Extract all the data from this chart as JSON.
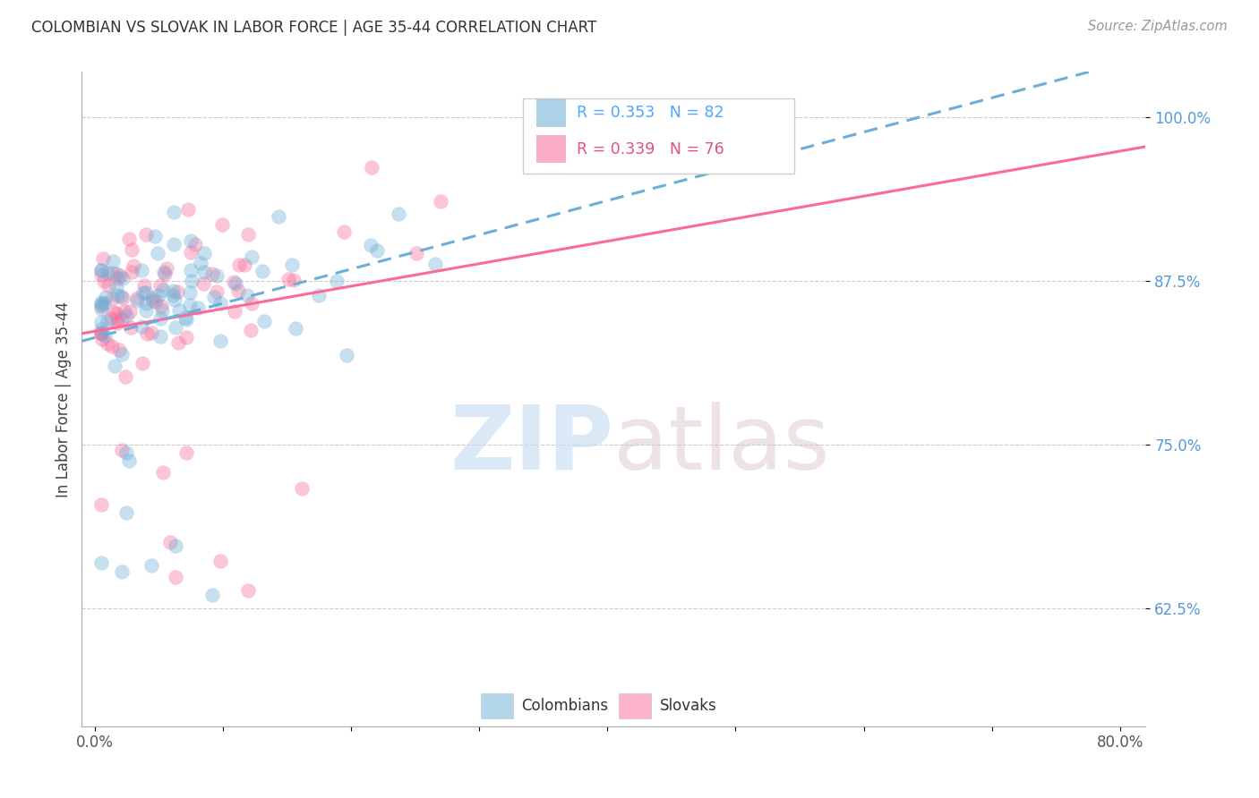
{
  "title": "COLOMBIAN VS SLOVAK IN LABOR FORCE | AGE 35-44 CORRELATION CHART",
  "source": "Source: ZipAtlas.com",
  "ylabel": "In Labor Force | Age 35-44",
  "xlim": [
    -0.01,
    0.82
  ],
  "ylim": [
    0.535,
    1.035
  ],
  "xticks": [
    0.0,
    0.1,
    0.2,
    0.3,
    0.4,
    0.5,
    0.6,
    0.7,
    0.8
  ],
  "xticklabels": [
    "0.0%",
    "",
    "",
    "",
    "",
    "",
    "",
    "",
    "80.0%"
  ],
  "ytick_positions": [
    0.625,
    0.75,
    0.875,
    1.0
  ],
  "ytick_labels": [
    "62.5%",
    "75.0%",
    "87.5%",
    "100.0%"
  ],
  "colombian_color": "#6baed6",
  "slovak_color": "#fb6a9a",
  "colombian_R": 0.353,
  "colombian_N": 82,
  "slovak_R": 0.339,
  "slovak_N": 76,
  "watermark_zip": "ZIP",
  "watermark_atlas": "atlas",
  "legend_R_color_col": "#4da6ff",
  "legend_R_color_slv": "#e05080",
  "col_scatter_alpha": 0.38,
  "slv_scatter_alpha": 0.38,
  "scatter_size": 130,
  "col_line_slope": 0.22,
  "col_line_intercept": 0.858,
  "slv_line_slope": 0.21,
  "slv_line_intercept": 0.852
}
